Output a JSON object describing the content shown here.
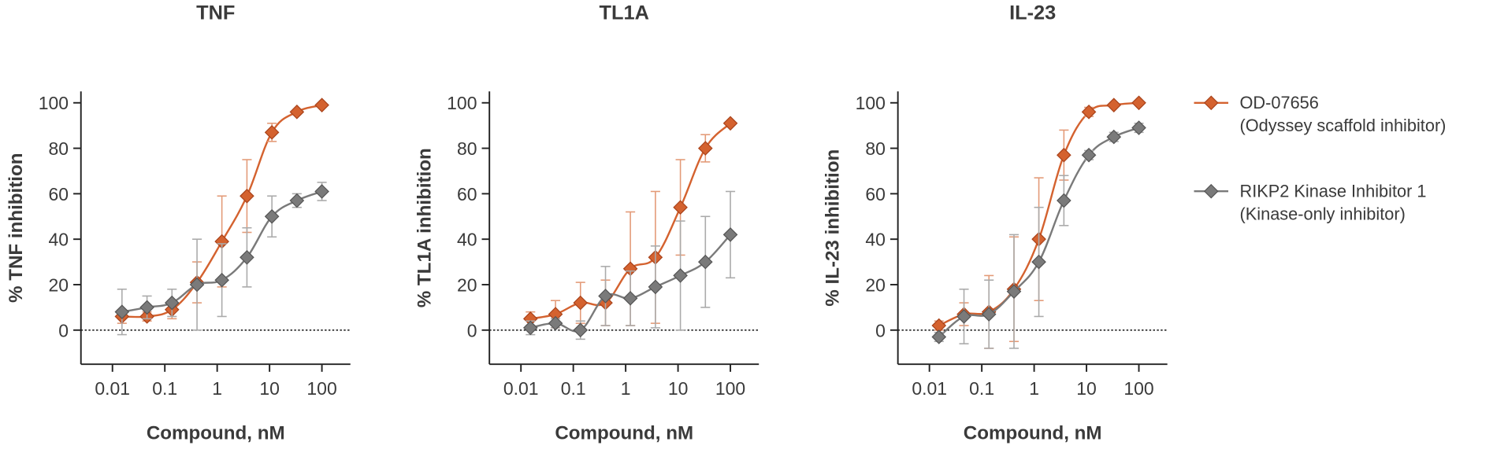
{
  "chart_data": [
    {
      "type": "scatter",
      "title": "TNF",
      "x_label": "Compound, nM",
      "y_label": "% TNF inhibition",
      "x": [
        0.0152,
        0.0457,
        0.137,
        0.412,
        1.23,
        3.7,
        11.1,
        33.3,
        100
      ],
      "xscale": "log",
      "xlim": [
        0.0025,
        350
      ],
      "xticks": [
        0.01,
        0.1,
        1,
        10,
        100
      ],
      "ylim": [
        -15,
        105
      ],
      "yticks": [
        0,
        20,
        40,
        60,
        80,
        100
      ],
      "reference_line": 0,
      "series": [
        {
          "color": "#d4622f",
          "values": [
            6,
            6,
            9,
            21,
            39,
            59,
            87,
            96,
            99
          ],
          "errors": [
            3,
            2,
            4,
            9,
            20,
            16,
            4,
            0,
            0
          ]
        },
        {
          "color": "#7a7a7a",
          "values": [
            8,
            10,
            12,
            20,
            22,
            32,
            50,
            57,
            61
          ],
          "errors": [
            10,
            5,
            6,
            20,
            16,
            13,
            9,
            3,
            4
          ]
        }
      ]
    },
    {
      "type": "scatter",
      "title": "TL1A",
      "x_label": "Compound, nM",
      "y_label": "% TL1A inhibition",
      "x": [
        0.0152,
        0.0457,
        0.137,
        0.412,
        1.23,
        3.7,
        11.1,
        33.3,
        100
      ],
      "xscale": "log",
      "xlim": [
        0.0025,
        350
      ],
      "xticks": [
        0.01,
        0.1,
        1,
        10,
        100
      ],
      "ylim": [
        -15,
        105
      ],
      "yticks": [
        0,
        20,
        40,
        60,
        80,
        100
      ],
      "reference_line": 0,
      "series": [
        {
          "color": "#d4622f",
          "values": [
            5,
            7,
            12,
            12,
            27,
            32,
            54,
            80,
            91
          ],
          "errors": [
            3,
            6,
            9,
            10,
            25,
            29,
            21,
            6,
            0
          ]
        },
        {
          "color": "#7a7a7a",
          "values": [
            1,
            3,
            0,
            15,
            14,
            19,
            24,
            30,
            42
          ],
          "errors": [
            3,
            2,
            4,
            13,
            12,
            18,
            24,
            20,
            19
          ]
        }
      ]
    },
    {
      "type": "scatter",
      "title": "IL-23",
      "x_label": "Compound, nM",
      "y_label": "% IL-23 inhibition",
      "x": [
        0.0152,
        0.0457,
        0.137,
        0.412,
        1.23,
        3.7,
        11.1,
        33.3,
        100
      ],
      "xscale": "log",
      "xlim": [
        0.0025,
        350
      ],
      "xticks": [
        0.01,
        0.1,
        1,
        10,
        100
      ],
      "ylim": [
        -15,
        105
      ],
      "yticks": [
        0,
        20,
        40,
        60,
        80,
        100
      ],
      "reference_line": 0,
      "legend": "right",
      "series": [
        {
          "name": "OD-07656",
          "description": "(Odyssey scaffold inhibitor)",
          "color": "#d4622f",
          "values": [
            2,
            7,
            8,
            18,
            40,
            77,
            96,
            99,
            100
          ],
          "errors": [
            2,
            5,
            16,
            23,
            27,
            11,
            2,
            0,
            0
          ]
        },
        {
          "name": "RIKP2 Kinase Inhibitor 1",
          "description": "(Kinase-only inhibitor)",
          "color": "#7a7a7a",
          "values": [
            -3,
            6,
            7,
            17,
            30,
            57,
            77,
            85,
            89
          ],
          "errors": [
            2,
            12,
            15,
            25,
            24,
            11,
            2,
            2,
            2
          ]
        }
      ]
    }
  ]
}
